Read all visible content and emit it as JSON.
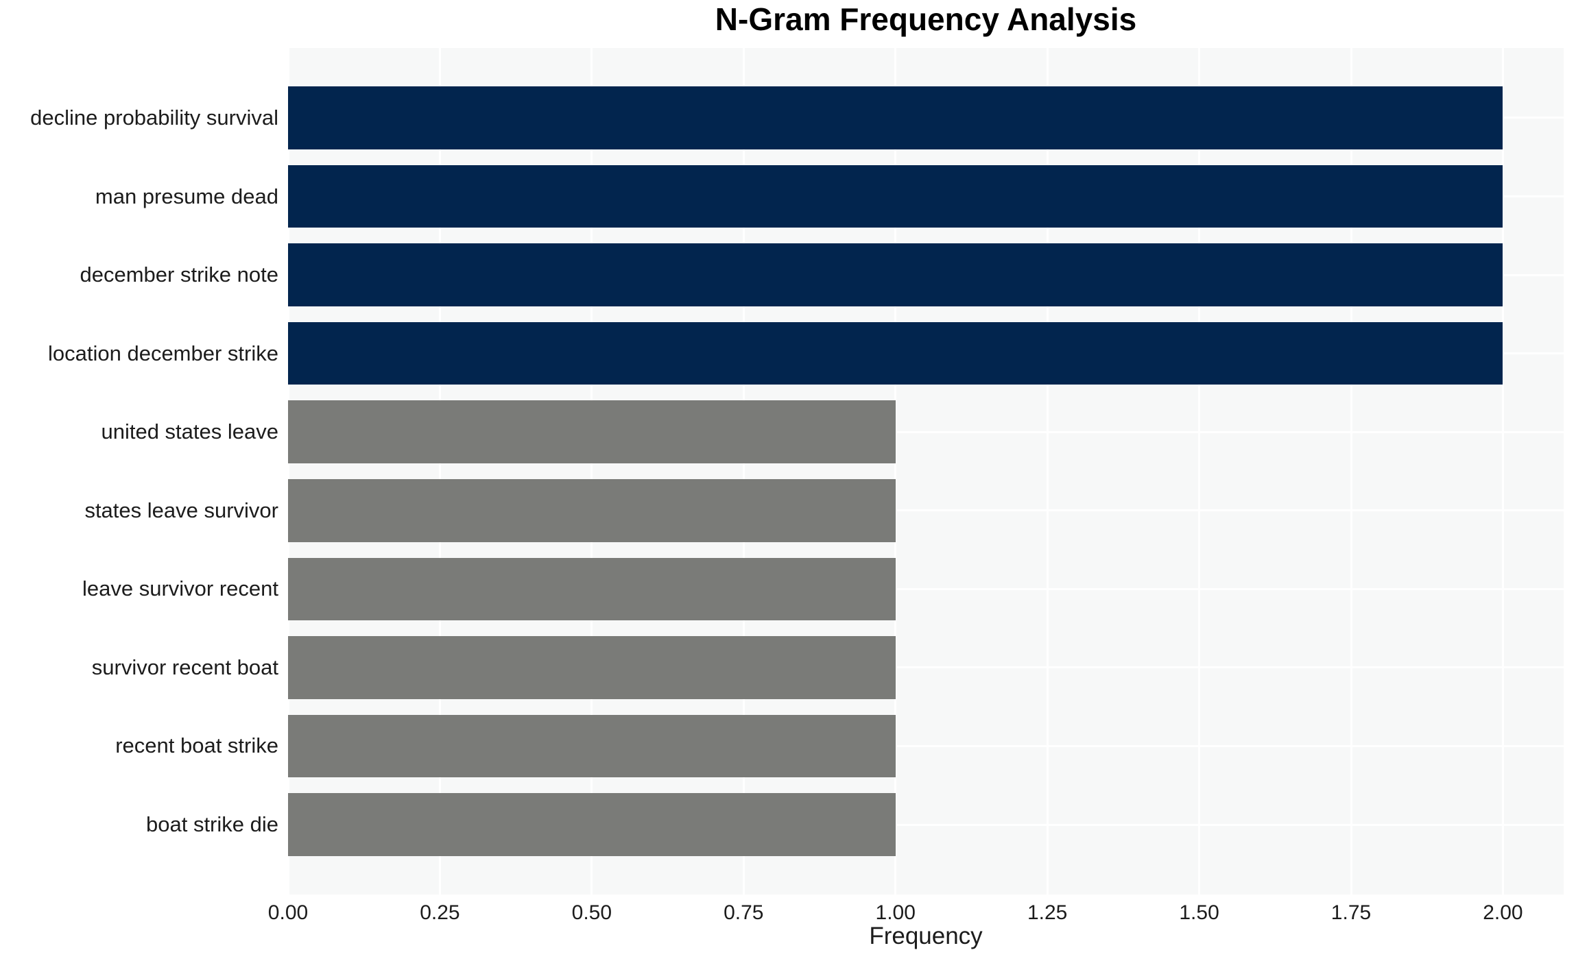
{
  "figure": {
    "background": "#ffffff"
  },
  "chart_data": {
    "type": "bar",
    "orientation": "horizontal",
    "title": "N-Gram Frequency Analysis",
    "xlabel": "Frequency",
    "ylabel": "",
    "categories": [
      "decline probability survival",
      "man presume dead",
      "december strike note",
      "location december strike",
      "united states leave",
      "states leave survivor",
      "leave survivor recent",
      "survivor recent boat",
      "recent boat strike",
      "boat strike die"
    ],
    "values": [
      2,
      2,
      2,
      2,
      1,
      1,
      1,
      1,
      1,
      1
    ],
    "bar_colors": [
      "#02254e",
      "#02254e",
      "#02254e",
      "#02254e",
      "#7a7b78",
      "#7a7b78",
      "#7a7b78",
      "#7a7b78",
      "#7a7b78",
      "#7a7b78"
    ],
    "xlim": [
      0,
      2.1
    ],
    "xticks": {
      "values": [
        0,
        0.25,
        0.5,
        0.75,
        1,
        1.25,
        1.5,
        1.75,
        2
      ],
      "labels": [
        "0.00",
        "0.25",
        "0.50",
        "0.75",
        "1.00",
        "1.25",
        "1.50",
        "1.75",
        "2.00"
      ]
    },
    "bar_height_fraction": 0.8,
    "grid": {
      "show": true,
      "color": "#ffffff",
      "panel_background": "#f7f8f8"
    },
    "colors": {
      "bar_high": "#02254e",
      "bar_low": "#7a7b78",
      "text": "#1c1c1c",
      "title": "#000000"
    },
    "legend": {
      "show": false
    }
  }
}
